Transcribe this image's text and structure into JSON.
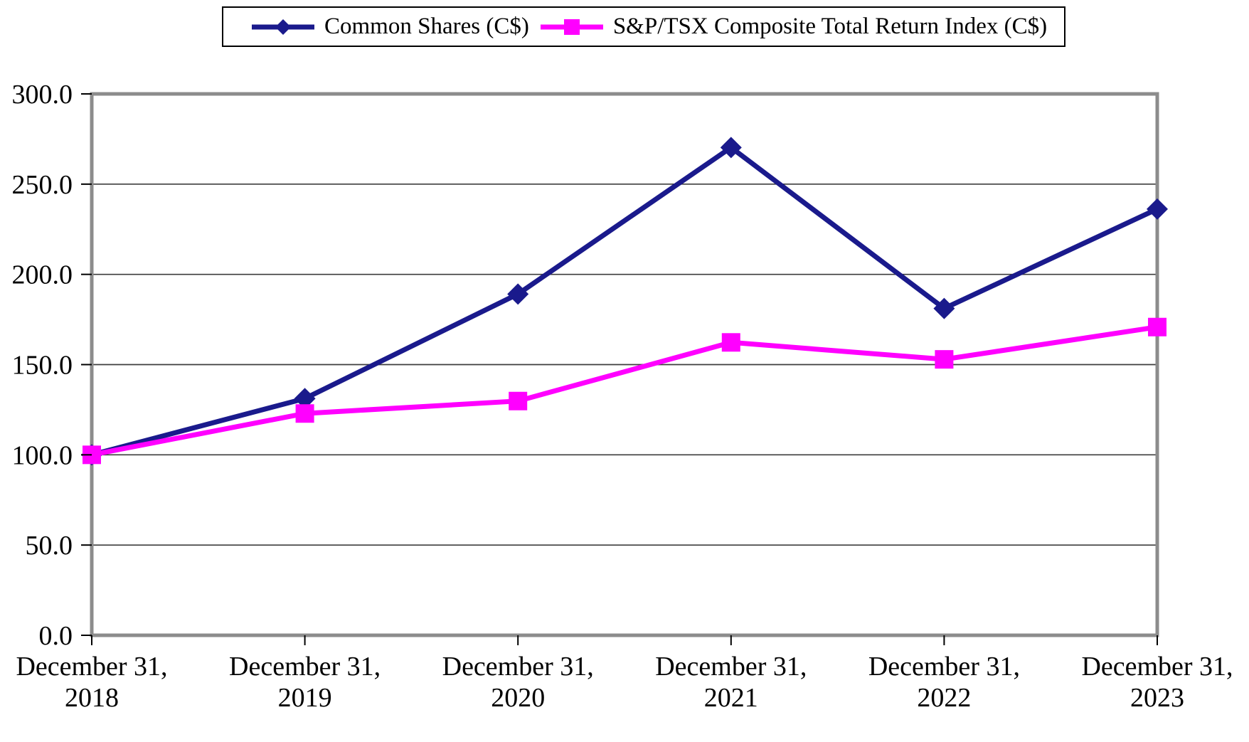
{
  "chart_data": {
    "type": "line",
    "title": "",
    "xlabel": "",
    "ylabel": "",
    "categories": [
      {
        "line1": "December 31,",
        "line2": "2018"
      },
      {
        "line1": "December 31,",
        "line2": "2019"
      },
      {
        "line1": "December 31,",
        "line2": "2020"
      },
      {
        "line1": "December 31,",
        "line2": "2021"
      },
      {
        "line1": "December 31,",
        "line2": "2022"
      },
      {
        "line1": "December 31,",
        "line2": "2023"
      }
    ],
    "series": [
      {
        "name": "Common Shares (C$)",
        "color": "#1a1a8c",
        "marker": "diamond",
        "values": [
          100.0,
          131.2,
          189.1,
          270.3,
          181.1,
          236.2
        ]
      },
      {
        "name": "S&P/TSX Composite Total Return Index (C$)",
        "color": "#ff00ff",
        "marker": "square",
        "values": [
          100.0,
          122.9,
          129.8,
          162.3,
          152.9,
          170.8
        ]
      }
    ],
    "ylim": [
      0,
      300
    ],
    "y_ticks": [
      0,
      50,
      100,
      150,
      200,
      250,
      300
    ],
    "y_tick_labels": [
      "0.0",
      "50.0",
      "100.0",
      "150.0",
      "200.0",
      "250.0",
      "300.0"
    ],
    "grid": "horizontal",
    "legend_position": "top-center",
    "frame_color": "#8c8c8c",
    "grid_color": "#3d3d3d",
    "text_color": "#000000"
  }
}
